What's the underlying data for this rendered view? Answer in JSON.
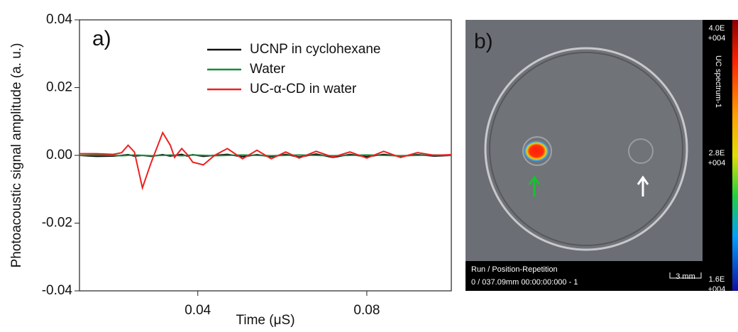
{
  "chart_data": {
    "type": "line",
    "panel_label": "a)",
    "x_label": "Time (μS)",
    "y_label": "Photoacoustic signal amplitude (a. u.)",
    "x": [
      0.012,
      0.016,
      0.02,
      0.022,
      0.0235,
      0.025,
      0.0269,
      0.029,
      0.0317,
      0.0335,
      0.0345,
      0.0362,
      0.0375,
      0.0388,
      0.0413,
      0.044,
      0.047,
      0.0506,
      0.054,
      0.0574,
      0.0608,
      0.064,
      0.068,
      0.072,
      0.076,
      0.08,
      0.084,
      0.088,
      0.092,
      0.096,
      0.1
    ],
    "series": [
      {
        "name": "UCNP in cyclohexane",
        "color": "#111111",
        "values": [
          0,
          -0.0003,
          -0.0002,
          0,
          0.0002,
          -0.0002,
          0,
          -0.0003,
          0.0002,
          -0.0002,
          0,
          0.0003,
          -0.0002,
          0.0002,
          -0.0003,
          0,
          0.0003,
          -0.0004,
          0.0002,
          -0.0004,
          0.0003,
          -0.0005,
          0.0004,
          -0.0006,
          0.0003,
          -0.0004,
          0.0003,
          -0.0003,
          0.0002,
          -0.0002,
          0
        ]
      },
      {
        "name": "Water",
        "color": "#1a8a3a",
        "values": [
          0,
          0.0001,
          0,
          -0.0001,
          0,
          0.0001,
          0,
          -0.0001,
          0,
          0.0001,
          0,
          -0.0001,
          0,
          0.0001,
          0,
          -0.0001,
          0,
          0.0001,
          0,
          -0.0001,
          0,
          0.0001,
          0,
          -0.0001,
          0,
          0.0001,
          0,
          -0.0001,
          0,
          0.0001,
          0
        ]
      },
      {
        "name": "UC-α-CD in water",
        "color": "#ee2020",
        "values": [
          0.0005,
          0.0005,
          0.0003,
          0.0008,
          0.003,
          0.001,
          -0.0096,
          -0.002,
          0.0067,
          0.003,
          -0.0006,
          0.002,
          0.0003,
          -0.002,
          -0.0028,
          0,
          0.002,
          -0.001,
          0.0015,
          -0.001,
          0.001,
          -0.0008,
          0.0012,
          -0.0005,
          0.001,
          -0.0008,
          0.0012,
          -0.0006,
          0.0008,
          0,
          0.0002
        ]
      }
    ],
    "xlim": [
      0.012,
      0.1
    ],
    "xticks": [
      0.04,
      0.08
    ],
    "ylim": [
      -0.04,
      0.04
    ],
    "yticks": [
      -0.04,
      -0.02,
      {
        "value": 0,
        "label": "0.00"
      },
      0.02,
      0.04
    ]
  },
  "image_panel": {
    "panel_label": "b)",
    "colorbar_title": "UC spectrum-1",
    "colorbar_labels": [
      [
        "4.0E",
        "+004"
      ],
      [
        "2.8E",
        "+004"
      ],
      [
        "1.6E",
        "+004"
      ]
    ],
    "footer_lines": [
      "Run / Position-Repetition",
      "0 / 037.09mm 00:00:00:000 - 1"
    ],
    "scale_bar": "3 mm"
  }
}
